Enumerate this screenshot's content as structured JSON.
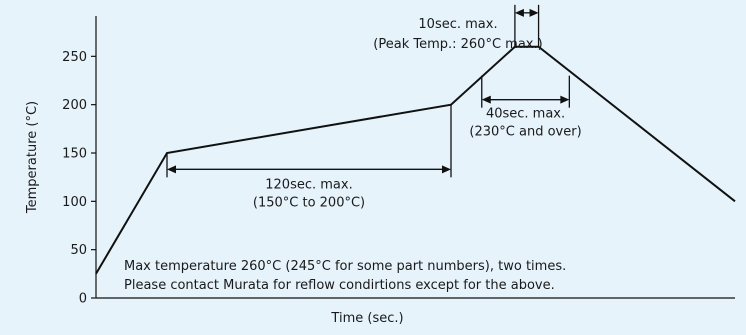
{
  "chart_data": {
    "type": "line",
    "title": "",
    "xlabel": "Time (sec.)",
    "ylabel": "Temperature (°C)",
    "ylim": [
      0,
      300
    ],
    "y_ticks": [
      0,
      50,
      100,
      150,
      200,
      250
    ],
    "y_tick_labels": [
      "0",
      "50",
      "100",
      "150",
      "200",
      "250"
    ],
    "grid": false,
    "legend": "none",
    "x_tick_labels_shown": false,
    "series": [
      {
        "points": [
          {
            "x": 0,
            "y": 25
          },
          {
            "x": 30,
            "y": 150
          },
          {
            "x": 150,
            "y": 200
          },
          {
            "x": 177,
            "y": 260
          },
          {
            "x": 187,
            "y": 260
          },
          {
            "x": 270,
            "y": 100
          }
        ]
      }
    ],
    "annotations": {
      "preheat": {
        "from_x": 30,
        "to_x": 150,
        "y": 130,
        "line1": "120sec. max.",
        "line2": "(150°C to 200°C)"
      },
      "above230": {
        "from_x": 163,
        "to_x": 200,
        "y": 230,
        "line1": "40sec. max.",
        "line2": "(230°C and over)"
      },
      "peak": {
        "from_x": 177,
        "to_x": 187,
        "y": 295,
        "line1": "10sec. max.",
        "line2": "(Peak Temp.: 260°C max.)"
      }
    },
    "notes": [
      "Max temperature 260°C (245°C for some part numbers), two times.",
      "Please contact Murata for reflow condirtions except for the above."
    ]
  },
  "colors": {
    "background": "#e6f3fb",
    "line": "#111111"
  }
}
